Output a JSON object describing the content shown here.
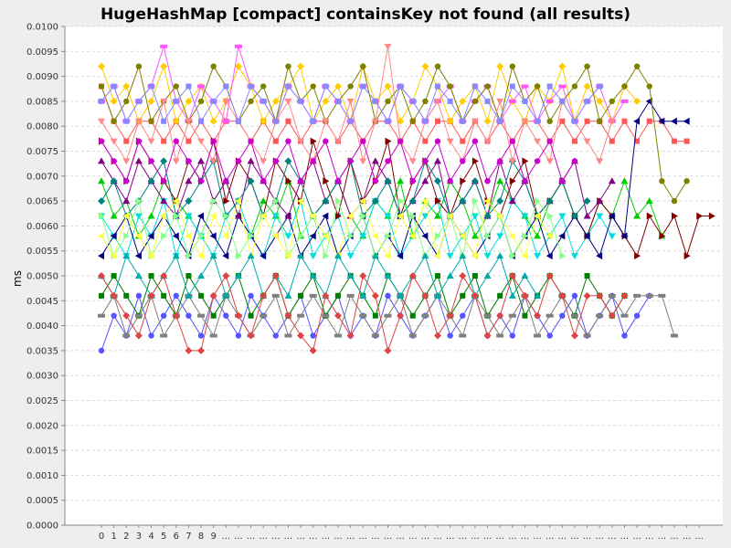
{
  "chart_data": {
    "type": "line",
    "title": "HugeHashMap [compact] containsKey not found (all results)",
    "ylabel": "ms",
    "xlabel": "",
    "ylim": [
      0,
      0.01
    ],
    "y_ticks": [
      "0.0000",
      "0.0005",
      "0.0010",
      "0.0015",
      "0.0020",
      "0.0025",
      "0.0030",
      "0.0035",
      "0.0040",
      "0.0045",
      "0.0050",
      "0.0055",
      "0.0060",
      "0.0065",
      "0.0070",
      "0.0075",
      "0.0080",
      "0.0085",
      "0.0090",
      "0.0095",
      "0.0100"
    ],
    "x_ticks": [
      "0",
      "1",
      "2",
      "3",
      "4",
      "5",
      "6",
      "7",
      "8",
      "9",
      "...",
      "...",
      "...",
      "...",
      "...",
      "...",
      "...",
      "...",
      "...",
      "...",
      "...",
      "...",
      "...",
      "...",
      "...",
      "...",
      "...",
      "...",
      "...",
      "...",
      "...",
      "...",
      "...",
      "...",
      "...",
      "...",
      "...",
      "...",
      "...",
      "...",
      "...",
      "...",
      "...",
      "...",
      "...",
      "...",
      "...",
      "...",
      "..."
    ],
    "grid": "horizontal",
    "legend": "none",
    "series": [
      {
        "color": "#ff5555",
        "values": [
          0.0088,
          0.0081,
          0.0077,
          0.0081,
          0.0081,
          0.0077,
          0.0081,
          0.0077,
          0.0081,
          0.0077,
          0.0081,
          0.0081,
          0.0077,
          0.0081,
          0.0077,
          0.0081,
          0.0077,
          0.0081,
          0.0081,
          0.0077,
          0.0081,
          0.0077,
          0.0081,
          0.0081,
          0.0077,
          0.0081,
          0.0077,
          0.0081,
          0.0081,
          0.0077,
          0.0081,
          0.0077,
          0.0081,
          0.0077,
          0.0081,
          0.0081,
          0.0077,
          0.0081,
          0.0077,
          0.0081,
          0.0081,
          0.0077,
          0.0081,
          0.0077,
          0.0081,
          0.0081,
          0.0077,
          0.0077
        ]
      },
      {
        "color": "#5555ff",
        "values": [
          0.0035,
          0.0042,
          0.0038,
          0.0046,
          0.0038,
          0.0042,
          0.0046,
          0.0042,
          0.0038,
          0.0046,
          0.0042,
          0.0038,
          0.0046,
          0.0042,
          0.0038,
          0.0042,
          0.0046,
          0.0038,
          0.0042,
          0.0046,
          0.0038,
          0.0042,
          0.0038,
          0.0046,
          0.0042,
          0.0038,
          0.0042,
          0.0046,
          0.0038,
          0.0042,
          0.0046,
          0.0038,
          0.0042,
          0.0038,
          0.0046,
          0.0042,
          0.0038,
          0.0042,
          0.0046,
          0.0038,
          0.0042,
          0.0046,
          0.0038,
          0.0042,
          0.0046
        ]
      },
      {
        "color": "#00cc00",
        "values": [
          0.0069,
          0.0062,
          0.0065,
          0.0058,
          0.0062,
          0.0069,
          0.0065,
          0.0062,
          0.0058,
          0.0065,
          0.0069,
          0.0062,
          0.0058,
          0.0065,
          0.0062,
          0.0069,
          0.0058,
          0.0062,
          0.0065,
          0.0069,
          0.0062,
          0.0058,
          0.0065,
          0.0062,
          0.0069,
          0.0058,
          0.0065,
          0.0062,
          0.0069,
          0.0065,
          0.0058,
          0.0062,
          0.0069,
          0.0065,
          0.0062,
          0.0058,
          0.0065,
          0.0069,
          0.0062,
          0.0058,
          0.0065,
          0.0062,
          0.0069,
          0.0062,
          0.0065,
          0.0058
        ]
      },
      {
        "color": "#ffcc00",
        "values": [
          0.0092,
          0.0085,
          0.0088,
          0.0081,
          0.0085,
          0.0092,
          0.0081,
          0.0085,
          0.0088,
          0.0081,
          0.0085,
          0.0092,
          0.0088,
          0.0081,
          0.0085,
          0.0088,
          0.0092,
          0.0081,
          0.0085,
          0.0088,
          0.0081,
          0.0092,
          0.0085,
          0.0088,
          0.0081,
          0.0085,
          0.0092,
          0.0088,
          0.0081,
          0.0085,
          0.0088,
          0.0081,
          0.0092,
          0.0085,
          0.0081,
          0.0088,
          0.0085,
          0.0092,
          0.0081,
          0.0088,
          0.0085,
          0.0081,
          0.0088,
          0.0085
        ]
      },
      {
        "color": "#ff55ff",
        "values": [
          0.0085,
          0.0088,
          0.0081,
          0.0085,
          0.0088,
          0.0096,
          0.0085,
          0.0081,
          0.0088,
          0.0085,
          0.0081,
          0.0096,
          0.0088,
          0.0085,
          0.0081,
          0.0088,
          0.0085,
          0.0081,
          0.0088,
          0.0085,
          0.0081,
          0.0088,
          0.0085,
          0.0081,
          0.0088,
          0.0085,
          0.0081,
          0.0085,
          0.0088,
          0.0081,
          0.0085,
          0.0088,
          0.0081,
          0.0085,
          0.0088,
          0.0081,
          0.0085,
          0.0088,
          0.0081,
          0.0085,
          0.0088,
          0.0081,
          0.0085
        ]
      },
      {
        "color": "#00dddd",
        "values": [
          0.0062,
          0.0058,
          0.0054,
          0.0062,
          0.0058,
          0.0065,
          0.0054,
          0.0062,
          0.0058,
          0.0054,
          0.0062,
          0.0065,
          0.0058,
          0.0054,
          0.0062,
          0.0058,
          0.0065,
          0.0054,
          0.0058,
          0.0062,
          0.0054,
          0.0058,
          0.0065,
          0.0062,
          0.0054,
          0.0058,
          0.0062,
          0.0065,
          0.0054,
          0.0058,
          0.0062,
          0.0054,
          0.0058,
          0.0065,
          0.0062,
          0.0054,
          0.0058,
          0.0062,
          0.0054,
          0.0058,
          0.0062,
          0.0058
        ]
      },
      {
        "color": "#800000",
        "values": [
          0.0077,
          0.0073,
          0.0069,
          0.0077,
          0.0073,
          0.0069,
          0.0065,
          0.0073,
          0.0069,
          0.0077,
          0.0065,
          0.0073,
          0.0069,
          0.0062,
          0.0073,
          0.0069,
          0.0065,
          0.0077,
          0.0069,
          0.0062,
          0.0073,
          0.0065,
          0.0069,
          0.0077,
          0.0062,
          0.0069,
          0.0073,
          0.0065,
          0.0062,
          0.0069,
          0.0073,
          0.0065,
          0.0062,
          0.0069,
          0.0073,
          0.0062,
          0.0065,
          0.0069,
          0.0062,
          0.0058,
          0.0065,
          0.0062,
          0.0058,
          0.0054,
          0.0062,
          0.0058,
          0.0062,
          0.0054,
          0.0062,
          0.0062
        ]
      },
      {
        "color": "#000080",
        "values": [
          0.0054,
          0.0058,
          0.0062,
          0.0054,
          0.0058,
          0.0062,
          0.0058,
          0.0054,
          0.0062,
          0.0058,
          0.0054,
          0.0062,
          0.0058,
          0.0054,
          0.0058,
          0.0062,
          0.0054,
          0.0058,
          0.0062,
          0.0054,
          0.0058,
          0.0062,
          0.0054,
          0.0058,
          0.0054,
          0.0062,
          0.0058,
          0.0054,
          0.0062,
          0.0058,
          0.0054,
          0.0058,
          0.0062,
          0.0054,
          0.0058,
          0.0062,
          0.0054,
          0.0058,
          0.0062,
          0.0058,
          0.0054,
          0.0062,
          0.0058,
          0.0081,
          0.0085,
          0.0081,
          0.0081,
          0.0081
        ]
      },
      {
        "color": "#008000",
        "values": [
          0.0046,
          0.005,
          0.0046,
          0.0042,
          0.005,
          0.0046,
          0.0042,
          0.005,
          0.0046,
          0.0042,
          0.0046,
          0.005,
          0.0042,
          0.0046,
          0.005,
          0.0042,
          0.0046,
          0.005,
          0.0042,
          0.0046,
          0.005,
          0.0046,
          0.0042,
          0.005,
          0.0046,
          0.0042,
          0.0046,
          0.005,
          0.0042,
          0.0046,
          0.005,
          0.0042,
          0.0046,
          0.005,
          0.0042,
          0.0046,
          0.005,
          0.0046,
          0.0042,
          0.005,
          0.0046,
          0.0042,
          0.0046
        ]
      },
      {
        "color": "#808000",
        "values": [
          0.0088,
          0.0081,
          0.0085,
          0.0092,
          0.0081,
          0.0085,
          0.0088,
          0.0081,
          0.0085,
          0.0092,
          0.0088,
          0.0081,
          0.0085,
          0.0088,
          0.0081,
          0.0092,
          0.0085,
          0.0088,
          0.0081,
          0.0085,
          0.0088,
          0.0092,
          0.0081,
          0.0085,
          0.0088,
          0.0081,
          0.0085,
          0.0092,
          0.0088,
          0.0081,
          0.0085,
          0.0088,
          0.0081,
          0.0092,
          0.0085,
          0.0088,
          0.0081,
          0.0085,
          0.0088,
          0.0092,
          0.0081,
          0.0085,
          0.0088,
          0.0092,
          0.0088,
          0.0069,
          0.0065,
          0.0069
        ]
      },
      {
        "color": "#800080",
        "values": [
          0.0073,
          0.0069,
          0.0065,
          0.0073,
          0.0069,
          0.0065,
          0.0062,
          0.0069,
          0.0073,
          0.0065,
          0.0069,
          0.0062,
          0.0073,
          0.0069,
          0.0065,
          0.0062,
          0.0069,
          0.0073,
          0.0065,
          0.0069,
          0.0062,
          0.0065,
          0.0073,
          0.0069,
          0.0062,
          0.0065,
          0.0069,
          0.0073,
          0.0062,
          0.0065,
          0.0069,
          0.0062,
          0.0073,
          0.0065,
          0.0069,
          0.0062,
          0.0065,
          0.0069,
          0.0073,
          0.0062,
          0.0065,
          0.0069
        ]
      },
      {
        "color": "#008080",
        "values": [
          0.0065,
          0.0069,
          0.0062,
          0.0065,
          0.0069,
          0.0073,
          0.0062,
          0.0065,
          0.0069,
          0.0073,
          0.0062,
          0.0065,
          0.0069,
          0.0062,
          0.0065,
          0.0073,
          0.0069,
          0.0062,
          0.0065,
          0.0069,
          0.0073,
          0.0062,
          0.0065,
          0.0069,
          0.0062,
          0.0065,
          0.0073,
          0.0069,
          0.0062,
          0.0065,
          0.0069,
          0.0062,
          0.0065,
          0.0073,
          0.0069,
          0.0062,
          0.0065,
          0.0069,
          0.0062,
          0.0065
        ]
      },
      {
        "color": "#808080",
        "values": [
          0.0042,
          0.0046,
          0.0038,
          0.0042,
          0.0046,
          0.0038,
          0.0042,
          0.0046,
          0.0042,
          0.0038,
          0.0046,
          0.0042,
          0.0038,
          0.0042,
          0.0046,
          0.0038,
          0.0042,
          0.0046,
          0.0042,
          0.0038,
          0.0046,
          0.0042,
          0.0038,
          0.0042,
          0.0046,
          0.0038,
          0.0042,
          0.0046,
          0.0042,
          0.0038,
          0.0046,
          0.0042,
          0.0038,
          0.0042,
          0.0046,
          0.0038,
          0.0042,
          0.0046,
          0.0042,
          0.0038,
          0.0042,
          0.0046,
          0.0042,
          0.0046,
          0.0046,
          0.0046,
          0.0038
        ]
      },
      {
        "color": "#ff8888",
        "values": [
          0.0081,
          0.0077,
          0.0073,
          0.0081,
          0.0077,
          0.0085,
          0.0073,
          0.0081,
          0.0077,
          0.0073,
          0.0085,
          0.0081,
          0.0077,
          0.0073,
          0.0081,
          0.0085,
          0.0077,
          0.0073,
          0.0081,
          0.0077,
          0.0085,
          0.0073,
          0.0081,
          0.0096,
          0.0077,
          0.0073,
          0.0081,
          0.0085,
          0.0077,
          0.0073,
          0.0081,
          0.0077,
          0.0085,
          0.0073,
          0.0081,
          0.0077,
          0.0073,
          0.0085,
          0.0081,
          0.0077,
          0.0073,
          0.0081
        ]
      },
      {
        "color": "#88ff88",
        "values": [
          0.0062,
          0.0054,
          0.0058,
          0.0065,
          0.0054,
          0.0058,
          0.0062,
          0.0054,
          0.0058,
          0.0065,
          0.0062,
          0.0054,
          0.0058,
          0.0062,
          0.0065,
          0.0054,
          0.0058,
          0.0062,
          0.0054,
          0.0065,
          0.0058,
          0.0062,
          0.0054,
          0.0058,
          0.0065,
          0.0062,
          0.0054,
          0.0058,
          0.0062,
          0.0054,
          0.0065,
          0.0058,
          0.0062,
          0.0054,
          0.0058,
          0.0065,
          0.0062,
          0.0054
        ]
      },
      {
        "color": "#ffff44",
        "values": [
          0.0058,
          0.0054,
          0.0062,
          0.0058,
          0.0054,
          0.0062,
          0.0065,
          0.0058,
          0.0054,
          0.0062,
          0.0058,
          0.0065,
          0.0054,
          0.0062,
          0.0058,
          0.0054,
          0.0065,
          0.0062,
          0.0058,
          0.0054,
          0.0062,
          0.0065,
          0.0058,
          0.0054,
          0.0062,
          0.0058,
          0.0065,
          0.0054,
          0.0062,
          0.0058,
          0.0054,
          0.0065,
          0.0062,
          0.0058,
          0.0054,
          0.0062,
          0.0058
        ]
      },
      {
        "color": "#8888ff",
        "values": [
          0.0085,
          0.0088,
          0.0081,
          0.0085,
          0.0088,
          0.0081,
          0.0085,
          0.0088,
          0.0081,
          0.0085,
          0.0088,
          0.0081,
          0.0088,
          0.0085,
          0.0081,
          0.0088,
          0.0085,
          0.0081,
          0.0088,
          0.0085,
          0.0081,
          0.0088,
          0.0085,
          0.0081,
          0.0088,
          0.0085,
          0.0081,
          0.0088,
          0.0085,
          0.0081,
          0.0088,
          0.0085,
          0.0081,
          0.0088,
          0.0085,
          0.0081,
          0.0088,
          0.0085,
          0.0081,
          0.0085,
          0.0088
        ]
      },
      {
        "color": "#cc00cc",
        "values": [
          0.0077,
          0.0073,
          0.0069,
          0.0077,
          0.0073,
          0.0069,
          0.0077,
          0.0073,
          0.0069,
          0.0077,
          0.0069,
          0.0073,
          0.0077,
          0.0069,
          0.0073,
          0.0077,
          0.0069,
          0.0073,
          0.0077,
          0.0069,
          0.0073,
          0.0077,
          0.0069,
          0.0073,
          0.0077,
          0.0069,
          0.0073,
          0.0077,
          0.0069,
          0.0073,
          0.0077,
          0.0069,
          0.0073,
          0.0077,
          0.0069,
          0.0073,
          0.0077,
          0.0069,
          0.0073
        ]
      },
      {
        "color": "#00aaaa",
        "values": [
          0.005,
          0.0046,
          0.0054,
          0.005,
          0.0046,
          0.005,
          0.0054,
          0.0046,
          0.005,
          0.0054,
          0.0046,
          0.005,
          0.0054,
          0.0046,
          0.005,
          0.0046,
          0.0054,
          0.005,
          0.0046,
          0.0054,
          0.005,
          0.0046,
          0.0054,
          0.005,
          0.0046,
          0.005,
          0.0054,
          0.0046,
          0.005,
          0.0054,
          0.0046,
          0.005,
          0.0054,
          0.0046,
          0.005,
          0.0046
        ]
      },
      {
        "color": "#dd4444",
        "values": [
          0.005,
          0.0046,
          0.0042,
          0.0038,
          0.0046,
          0.005,
          0.0042,
          0.0035,
          0.0035,
          0.0046,
          0.005,
          0.0042,
          0.0038,
          0.0046,
          0.005,
          0.0042,
          0.0038,
          0.0035,
          0.0046,
          0.0042,
          0.0038,
          0.005,
          0.0046,
          0.0035,
          0.0042,
          0.005,
          0.0046,
          0.0038,
          0.0042,
          0.005,
          0.0046,
          0.0038,
          0.0042,
          0.005,
          0.0046,
          0.0042,
          0.005,
          0.0046,
          0.0038,
          0.0046,
          0.0046,
          0.0042,
          0.0046
        ]
      }
    ]
  }
}
